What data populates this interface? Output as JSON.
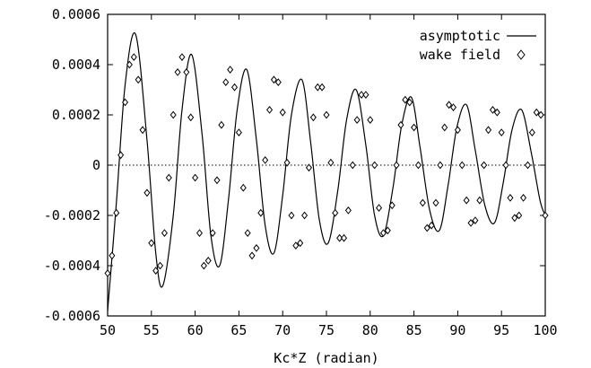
{
  "chart_data": {
    "type": "line",
    "xlabel": "Kc*Z (radian)",
    "ylabel": "",
    "xlim": [
      50,
      100
    ],
    "ylim": [
      -0.0006,
      0.0006
    ],
    "x_ticks": [
      50,
      55,
      60,
      65,
      70,
      75,
      80,
      85,
      90,
      95,
      100
    ],
    "x_tick_labels": [
      "50",
      "55",
      "60",
      "65",
      "70",
      "75",
      "80",
      "85",
      "90",
      "95",
      "100"
    ],
    "y_ticks": [
      -0.0006,
      -0.0004,
      -0.0002,
      0,
      0.0002,
      0.0004,
      0.0006
    ],
    "y_tick_labels": [
      "-0.0006",
      "-0.0004",
      "-0.0002",
      "0",
      "0.0002",
      "0.0004",
      "0.0006"
    ],
    "zero_line": true,
    "legend_position": "top-right",
    "series": [
      {
        "name": "asymptotic",
        "style": "solid-line",
        "color": "#000000",
        "x": [
          50.0,
          51.0,
          52.0,
          53.2,
          54.5,
          55.5,
          56.3,
          57.5,
          58.5,
          59.6,
          60.8,
          61.8,
          62.8,
          63.8,
          64.8,
          65.9,
          67.0,
          68.0,
          69.0,
          70.0,
          71.0,
          72.2,
          73.2,
          74.2,
          75.2,
          76.3,
          77.3,
          78.4,
          79.5,
          80.5,
          81.5,
          82.6,
          83.6,
          84.7,
          85.7,
          86.8,
          87.9,
          88.9,
          89.9,
          91.0,
          92.0,
          93.1,
          94.2,
          95.2,
          96.2,
          97.3,
          98.4,
          99.4,
          100.0
        ],
        "y": [
          -0.00058,
          -0.00015,
          0.00032,
          0.00052,
          0.0001,
          -0.00035,
          -0.00048,
          -0.0002,
          0.00022,
          0.00044,
          0.00012,
          -0.00028,
          -0.0004,
          -0.00014,
          0.00022,
          0.00038,
          0.0001,
          -0.00024,
          -0.00035,
          -0.00012,
          0.0002,
          0.00034,
          9e-05,
          -0.00022,
          -0.00031,
          -0.0001,
          0.00018,
          0.0003,
          8e-05,
          -0.0002,
          -0.00028,
          -9e-05,
          0.00016,
          0.00027,
          7e-05,
          -0.00018,
          -0.00026,
          -8e-05,
          0.00015,
          0.00024,
          6e-05,
          -0.00016,
          -0.00023,
          -7e-05,
          0.00014,
          0.00022,
          5e-05,
          -0.00014,
          -0.0002
        ]
      },
      {
        "name": "wake field",
        "style": "diamond-markers",
        "color": "#000000",
        "x": [
          50.0,
          50.5,
          51.0,
          51.5,
          52.0,
          52.5,
          53.0,
          53.5,
          54.0,
          54.5,
          55.0,
          55.5,
          56.0,
          56.5,
          57.0,
          57.5,
          58.0,
          58.5,
          59.0,
          59.5,
          60.0,
          60.5,
          61.0,
          61.5,
          62.0,
          62.5,
          63.0,
          63.5,
          64.0,
          64.5,
          65.0,
          65.5,
          66.0,
          66.5,
          67.0,
          67.5,
          68.0,
          68.5,
          69.0,
          69.5,
          70.0,
          70.5,
          71.0,
          71.5,
          72.0,
          72.5,
          73.0,
          73.5,
          74.0,
          74.5,
          75.0,
          75.5,
          76.0,
          76.5,
          77.0,
          77.5,
          78.0,
          78.5,
          79.0,
          79.5,
          80.0,
          80.5,
          81.0,
          81.5,
          82.0,
          82.5,
          83.0,
          83.5,
          84.0,
          84.5,
          85.0,
          85.5,
          86.0,
          86.5,
          87.0,
          87.5,
          88.0,
          88.5,
          89.0,
          89.5,
          90.0,
          90.5,
          91.0,
          91.5,
          92.0,
          92.5,
          93.0,
          93.5,
          94.0,
          94.5,
          95.0,
          95.5,
          96.0,
          96.5,
          97.0,
          97.5,
          98.0,
          98.5,
          99.0,
          99.5,
          100.0
        ],
        "y": [
          -0.00043,
          -0.00036,
          -0.00019,
          4e-05,
          0.00025,
          0.0004,
          0.00043,
          0.00034,
          0.00014,
          -0.00011,
          -0.00031,
          -0.00042,
          -0.0004,
          -0.00027,
          -5e-05,
          0.0002,
          0.00037,
          0.00043,
          0.00037,
          0.00019,
          -5e-05,
          -0.00027,
          -0.0004,
          -0.00038,
          -0.00027,
          -6e-05,
          0.00016,
          0.00033,
          0.00038,
          0.00031,
          0.00013,
          -9e-05,
          -0.00027,
          -0.00036,
          -0.00033,
          -0.00019,
          2e-05,
          0.00022,
          0.00034,
          0.00033,
          0.00021,
          1e-05,
          -0.0002,
          -0.00032,
          -0.00031,
          -0.0002,
          -1e-05,
          0.00019,
          0.00031,
          0.00031,
          0.0002,
          1e-05,
          -0.00019,
          -0.00029,
          -0.00029,
          -0.00018,
          0.0,
          0.00018,
          0.00028,
          0.00028,
          0.00018,
          0.0,
          -0.00017,
          -0.00027,
          -0.00026,
          -0.00016,
          0.0,
          0.00016,
          0.00026,
          0.00025,
          0.00015,
          0.0,
          -0.00015,
          -0.00025,
          -0.00024,
          -0.00015,
          0.0,
          0.00015,
          0.00024,
          0.00023,
          0.00014,
          0.0,
          -0.00014,
          -0.00023,
          -0.00022,
          -0.00014,
          0.0,
          0.00014,
          0.00022,
          0.00021,
          0.00013,
          0.0,
          -0.00013,
          -0.00021,
          -0.0002,
          -0.00013,
          0.0,
          0.00013,
          0.00021,
          0.0002,
          -0.0002
        ]
      }
    ]
  }
}
